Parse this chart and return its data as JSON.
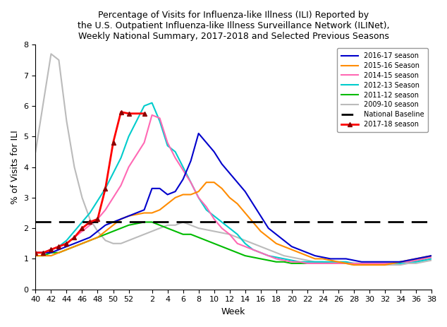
{
  "title": "Percentage of Visits for Influenza-like Illness (ILI) Reported by\nthe U.S. Outpatient Influenza-like Illness Surveillance Network (ILINet),\nWeekly National Summary, 2017-2018 and Selected Previous Seasons",
  "xlabel": "Week",
  "ylabel": "% of Visits for ILI",
  "ylim": [
    0,
    8
  ],
  "national_baseline": 2.2,
  "season_2016_17": {
    "label": "2016-17 season",
    "color": "#0000CC",
    "lw": 1.5,
    "weeks": [
      40,
      41,
      42,
      43,
      44,
      45,
      46,
      47,
      48,
      49,
      50,
      51,
      52,
      1,
      2,
      3,
      4,
      5,
      6,
      7,
      8,
      9,
      10,
      11,
      12,
      13,
      14,
      15,
      16,
      17,
      18,
      19,
      20,
      21,
      22,
      23,
      24,
      25,
      26,
      27,
      28,
      29,
      30,
      31,
      32,
      33,
      34,
      35,
      36,
      37,
      38,
      39
    ],
    "y": [
      1.2,
      1.2,
      1.2,
      1.3,
      1.4,
      1.5,
      1.6,
      1.7,
      1.9,
      2.1,
      2.2,
      2.3,
      2.4,
      2.6,
      3.3,
      3.3,
      3.1,
      3.2,
      3.6,
      4.2,
      5.1,
      4.8,
      4.5,
      4.1,
      3.8,
      3.5,
      3.2,
      2.8,
      2.4,
      2.0,
      1.8,
      1.6,
      1.4,
      1.3,
      1.2,
      1.1,
      1.05,
      1.0,
      1.0,
      1.0,
      0.95,
      0.9,
      0.9,
      0.9,
      0.9,
      0.9,
      0.9,
      0.95,
      1.0,
      1.05,
      1.1,
      1.2
    ]
  },
  "season_2015_16": {
    "label": "2015-16 Season",
    "color": "#FF8C00",
    "lw": 1.5,
    "weeks": [
      40,
      41,
      42,
      43,
      44,
      45,
      46,
      47,
      48,
      49,
      50,
      51,
      52,
      1,
      2,
      3,
      4,
      5,
      6,
      7,
      8,
      9,
      10,
      11,
      12,
      13,
      14,
      15,
      16,
      17,
      18,
      19,
      20,
      21,
      22,
      23,
      24,
      25,
      26,
      27,
      28,
      29,
      30,
      31,
      32,
      33,
      34,
      35,
      36,
      37,
      38,
      39
    ],
    "y": [
      1.1,
      1.1,
      1.1,
      1.2,
      1.3,
      1.4,
      1.5,
      1.6,
      1.7,
      1.9,
      2.1,
      2.3,
      2.4,
      2.5,
      2.5,
      2.6,
      2.8,
      3.0,
      3.1,
      3.1,
      3.2,
      3.5,
      3.5,
      3.3,
      3.0,
      2.8,
      2.5,
      2.2,
      1.9,
      1.7,
      1.5,
      1.4,
      1.3,
      1.2,
      1.1,
      1.0,
      1.0,
      0.95,
      0.9,
      0.85,
      0.8,
      0.8,
      0.8,
      0.8,
      0.8,
      0.85,
      0.9,
      0.95,
      1.0,
      1.05,
      1.1,
      1.2
    ]
  },
  "season_2014_15": {
    "label": "2014-15 season",
    "color": "#FF69B4",
    "lw": 1.5,
    "weeks": [
      40,
      41,
      42,
      43,
      44,
      45,
      46,
      47,
      48,
      49,
      50,
      51,
      52,
      1,
      2,
      3,
      4,
      5,
      6,
      7,
      8,
      9,
      10,
      11,
      12,
      13,
      14,
      15,
      16,
      17,
      18,
      19,
      20,
      21,
      22,
      23,
      24,
      25,
      26,
      27,
      28,
      29,
      30,
      31,
      32,
      33,
      34,
      35,
      36,
      37,
      38,
      39
    ],
    "y": [
      1.2,
      1.2,
      1.3,
      1.4,
      1.5,
      1.7,
      1.9,
      2.1,
      2.3,
      2.6,
      3.0,
      3.4,
      4.0,
      4.8,
      5.7,
      5.6,
      4.8,
      4.3,
      3.9,
      3.5,
      3.0,
      2.7,
      2.3,
      2.0,
      1.8,
      1.5,
      1.4,
      1.3,
      1.2,
      1.1,
      1.0,
      0.95,
      0.9,
      0.9,
      0.85,
      0.85,
      0.85,
      0.85,
      0.85,
      0.85,
      0.85,
      0.85,
      0.85,
      0.85,
      0.85,
      0.85,
      0.9,
      0.9,
      0.95,
      1.0,
      1.05,
      1.1
    ]
  },
  "season_2012_13": {
    "label": "2012-13 Season",
    "color": "#00CCCC",
    "lw": 1.5,
    "weeks": [
      40,
      41,
      42,
      43,
      44,
      45,
      46,
      47,
      48,
      49,
      50,
      51,
      52,
      1,
      2,
      3,
      4,
      5,
      6,
      7,
      8,
      9,
      10,
      11,
      12,
      13,
      14,
      15,
      16,
      17,
      18,
      19,
      20,
      21,
      22,
      23,
      24,
      25,
      26,
      27,
      28,
      29,
      30,
      31,
      32,
      33,
      34,
      35,
      36,
      37,
      38,
      39
    ],
    "y": [
      1.2,
      1.2,
      1.3,
      1.4,
      1.6,
      1.9,
      2.2,
      2.5,
      2.9,
      3.3,
      3.8,
      4.3,
      5.0,
      6.0,
      6.1,
      5.5,
      4.7,
      4.5,
      4.0,
      3.5,
      3.0,
      2.6,
      2.4,
      2.2,
      2.0,
      1.8,
      1.5,
      1.3,
      1.2,
      1.1,
      1.05,
      1.0,
      0.95,
      0.9,
      0.9,
      0.9,
      0.9,
      0.9,
      0.9,
      0.9,
      0.85,
      0.85,
      0.85,
      0.85,
      0.85,
      0.85,
      0.85,
      0.9,
      0.9,
      0.95,
      1.0,
      1.05
    ]
  },
  "season_2011_12": {
    "label": "2011-12 season",
    "color": "#00BB00",
    "lw": 1.5,
    "weeks": [
      40,
      41,
      42,
      43,
      44,
      45,
      46,
      47,
      48,
      49,
      50,
      51,
      52,
      1,
      2,
      3,
      4,
      5,
      6,
      7,
      8,
      9,
      10,
      11,
      12,
      13,
      14,
      15,
      16,
      17,
      18,
      19,
      20,
      21,
      22,
      23,
      24,
      25,
      26,
      27,
      28,
      29,
      30,
      31,
      32,
      33,
      34,
      35,
      36,
      37,
      38,
      39
    ],
    "y": [
      1.1,
      1.1,
      1.2,
      1.2,
      1.3,
      1.4,
      1.5,
      1.6,
      1.7,
      1.8,
      1.9,
      2.0,
      2.1,
      2.2,
      2.2,
      2.1,
      2.0,
      1.9,
      1.8,
      1.8,
      1.7,
      1.6,
      1.5,
      1.4,
      1.3,
      1.2,
      1.1,
      1.05,
      1.0,
      0.95,
      0.9,
      0.9,
      0.85,
      0.85,
      0.85,
      0.85,
      0.85,
      0.85,
      0.85,
      0.85,
      0.85,
      0.85,
      0.85,
      0.85,
      0.85,
      0.85,
      0.9,
      0.9,
      0.95,
      1.0,
      1.1,
      1.2
    ]
  },
  "season_2009_10": {
    "label": "2009-10 season",
    "color": "#BBBBBB",
    "lw": 1.5,
    "weeks": [
      40,
      41,
      42,
      43,
      44,
      45,
      46,
      47,
      48,
      49,
      50,
      51,
      52,
      1,
      2,
      3,
      4,
      5,
      6,
      7,
      8,
      9,
      10,
      11,
      12,
      13,
      14,
      15,
      16,
      17,
      18,
      19,
      20,
      21,
      22,
      23,
      24,
      25,
      26,
      27,
      28,
      29,
      30,
      31,
      32,
      33,
      34,
      35,
      36,
      37,
      38,
      39
    ],
    "y": [
      4.5,
      6.1,
      7.7,
      7.5,
      5.5,
      4.0,
      3.0,
      2.3,
      1.9,
      1.6,
      1.5,
      1.5,
      1.6,
      1.8,
      1.9,
      2.0,
      2.1,
      2.1,
      2.2,
      2.1,
      2.0,
      1.95,
      1.9,
      1.85,
      1.8,
      1.7,
      1.6,
      1.5,
      1.4,
      1.3,
      1.2,
      1.1,
      1.05,
      1.0,
      0.95,
      0.9,
      0.9,
      0.85,
      0.85,
      0.85,
      0.8,
      0.8,
      0.8,
      0.8,
      0.8,
      0.8,
      0.8,
      0.85,
      0.85,
      0.9,
      0.95,
      1.0
    ]
  },
  "season_2017_18": {
    "label": "2017-18 season",
    "color": "#FF0000",
    "lw": 2.0,
    "weeks": [
      40,
      41,
      42,
      43,
      44,
      45,
      46,
      47,
      48,
      49,
      50,
      51,
      52,
      1
    ],
    "y": [
      1.2,
      1.2,
      1.3,
      1.4,
      1.5,
      1.7,
      2.0,
      2.2,
      2.3,
      3.3,
      4.8,
      5.8,
      5.75,
      5.75
    ]
  },
  "tick_weeks": [
    40,
    42,
    44,
    46,
    48,
    50,
    52,
    2,
    4,
    6,
    8,
    10,
    12,
    14,
    16,
    18,
    20,
    22,
    24,
    26,
    28,
    30,
    32,
    34,
    36,
    38
  ],
  "tick_labels": [
    "40",
    "42",
    "44",
    "46",
    "48",
    "50",
    "52",
    "2",
    "4",
    "6",
    "8",
    "10",
    "12",
    "14",
    "16",
    "18",
    "20",
    "22",
    "24",
    "26",
    "28",
    "30",
    "32",
    "34",
    "36",
    "38"
  ]
}
